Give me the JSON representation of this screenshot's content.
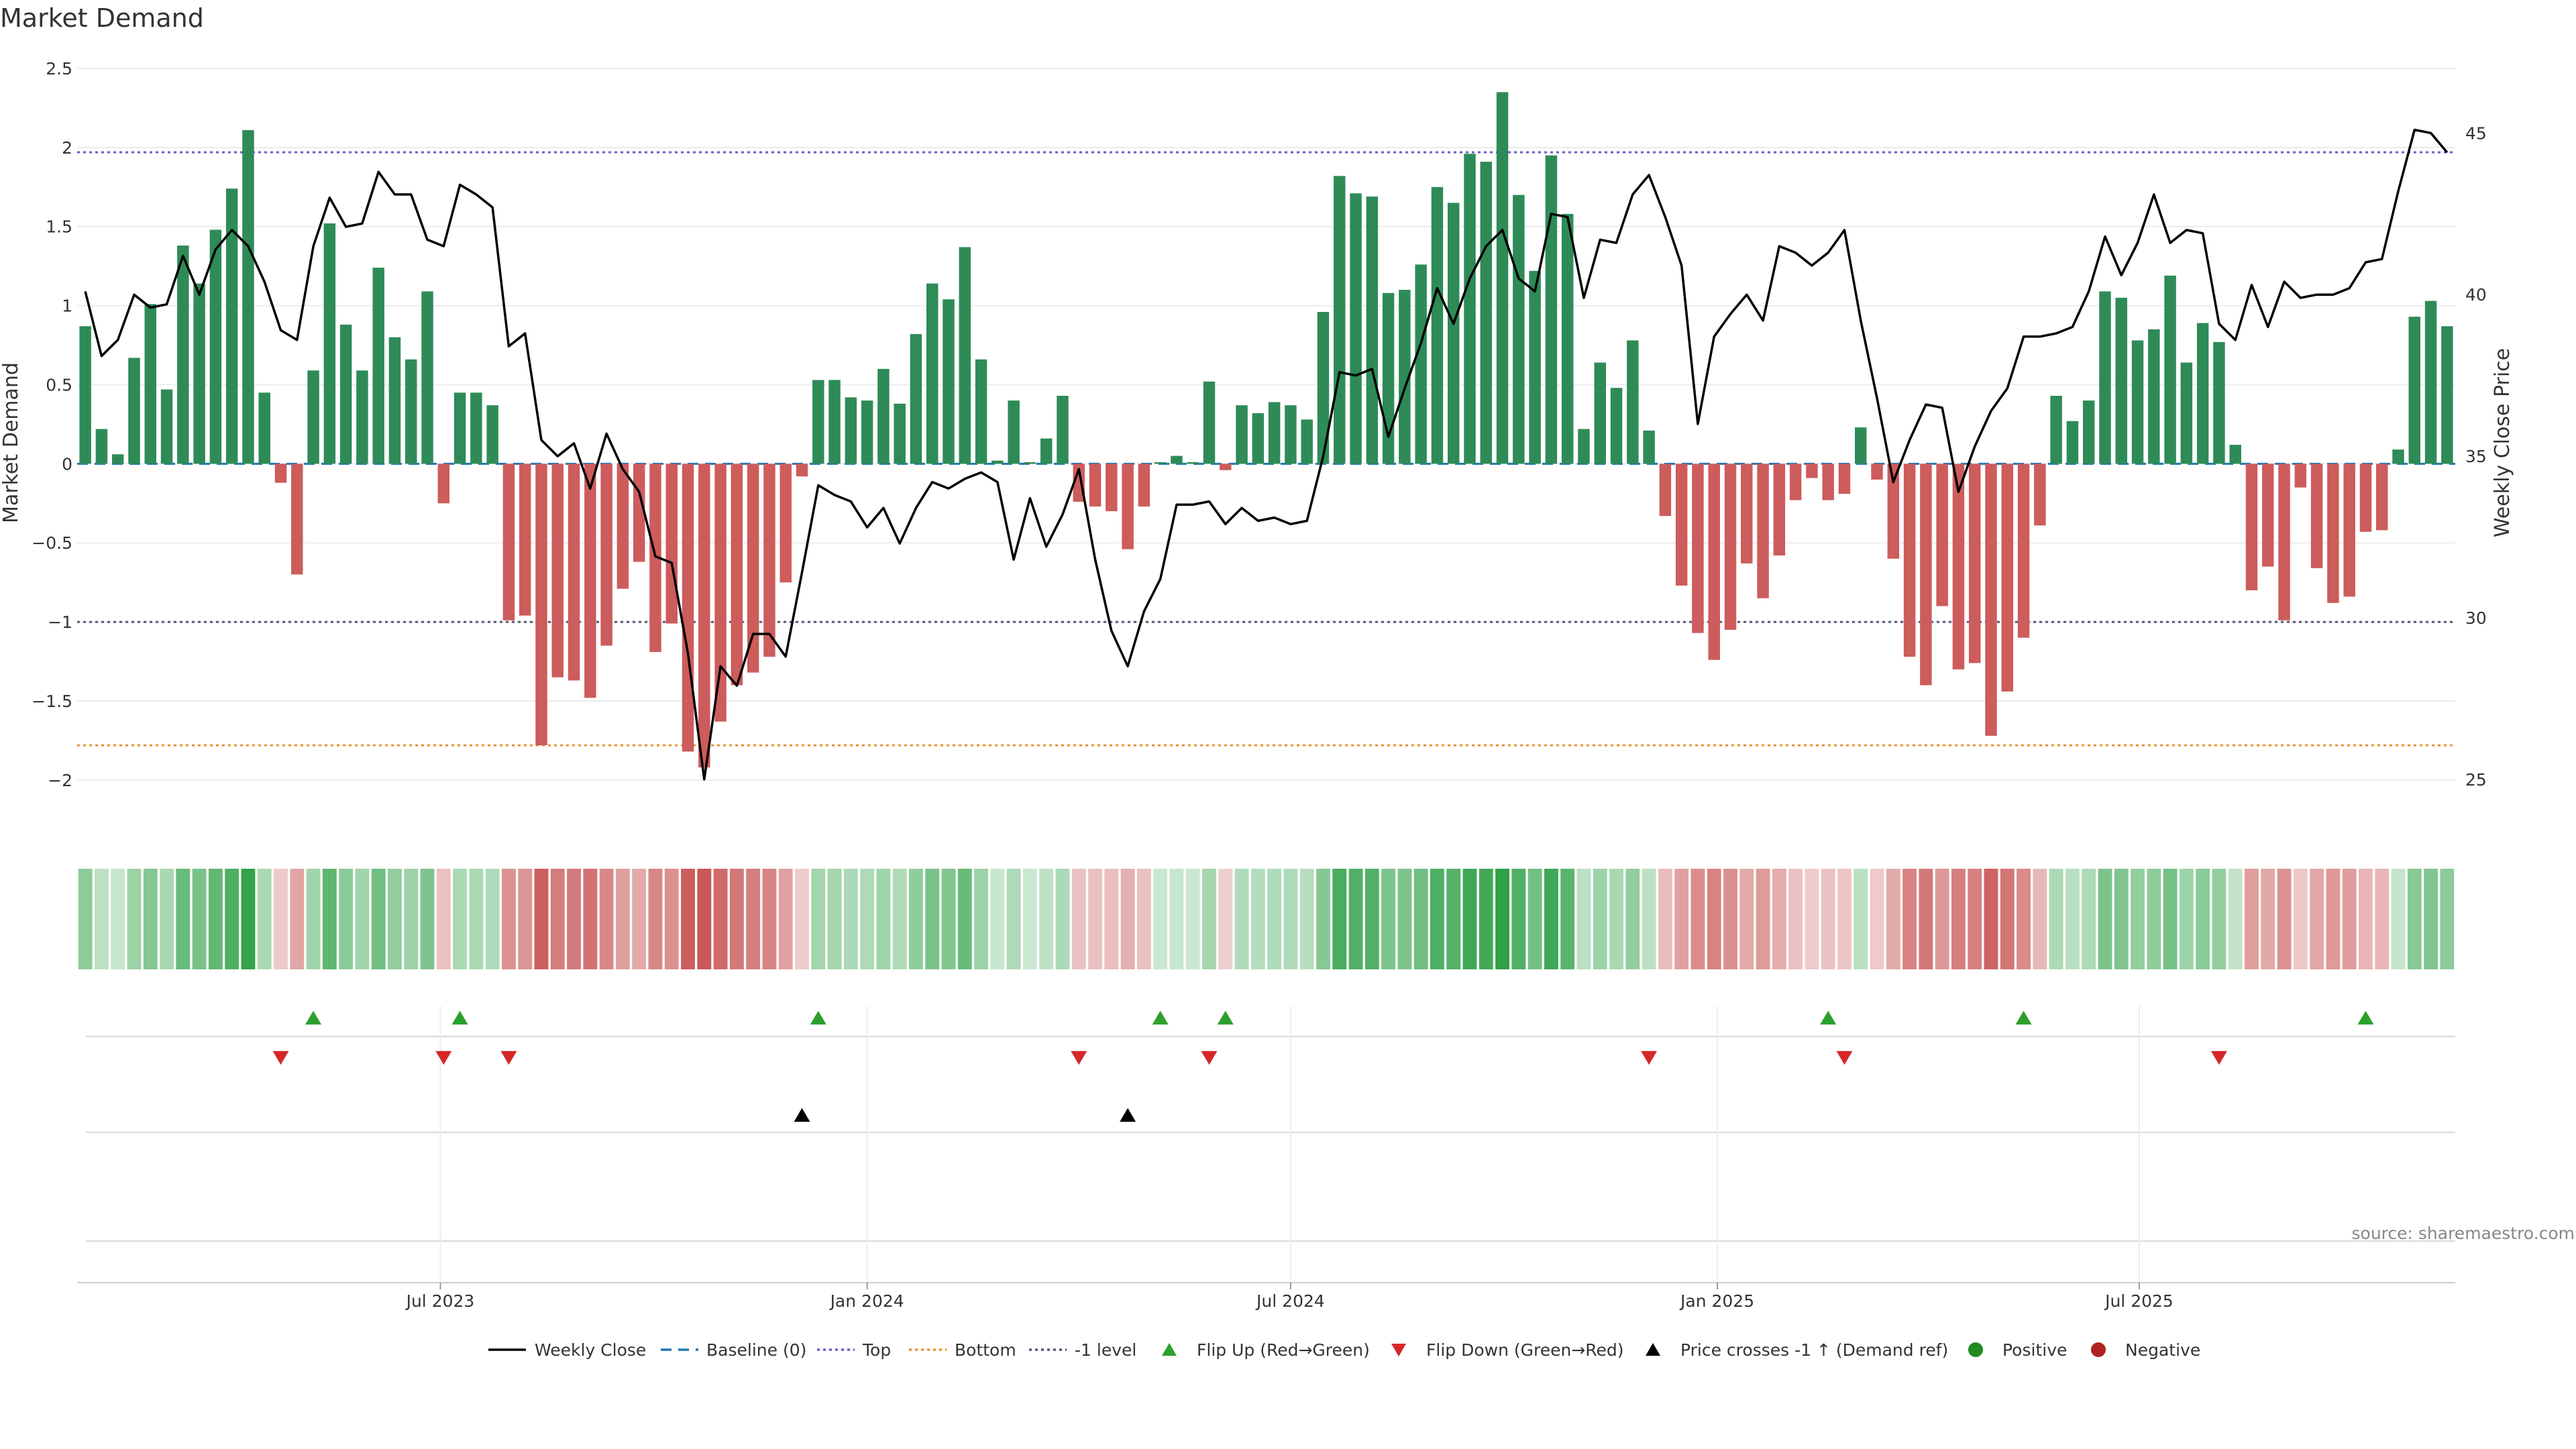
{
  "chart_data": {
    "type": "bar",
    "title": "Market Demand",
    "ylabel": "Market Demand",
    "y2label": "Weekly Close Price",
    "ylim": [
      -2.2,
      2.5
    ],
    "y2lim": [
      24,
      47
    ],
    "yticks": [
      2.5,
      2,
      1.5,
      1,
      0.5,
      0,
      -0.5,
      -1,
      -1.5,
      -2
    ],
    "ytick_labels": [
      "2.5",
      "2",
      "1.5",
      "1",
      "0.5",
      "0",
      "−0.5",
      "−1",
      "−1.5",
      "−2"
    ],
    "y2ticks": [
      45,
      40,
      35,
      30,
      25
    ],
    "y2tick_labels": [
      "45",
      "40",
      "35",
      "30",
      "25"
    ],
    "x_tick_labels": [
      "Jul 2023",
      "Jan 2024",
      "Jul 2024",
      "Jan 2025",
      "Jul 2025"
    ],
    "x_tick_index": [
      22.3,
      48.5,
      74.5,
      100.7,
      126.6
    ],
    "reference_lines": {
      "top": 1.97,
      "bottom": -1.78,
      "minus_one": -1.0
    },
    "demand": [
      0.87,
      0.22,
      0.06,
      0.67,
      1.01,
      0.47,
      1.38,
      1.14,
      1.48,
      1.74,
      2.11,
      0.45,
      -0.12,
      -0.7,
      0.59,
      1.52,
      0.88,
      0.59,
      1.24,
      0.8,
      0.66,
      1.09,
      -0.25,
      0.45,
      0.45,
      0.37,
      -0.99,
      -0.96,
      -1.78,
      -1.35,
      -1.37,
      -1.48,
      -1.15,
      -0.79,
      -0.62,
      -1.19,
      -1.01,
      -1.82,
      -1.92,
      -1.63,
      -1.4,
      -1.32,
      -1.22,
      -0.75,
      -0.08,
      0.53,
      0.53,
      0.42,
      0.4,
      0.6,
      0.38,
      0.82,
      1.14,
      1.04,
      1.37,
      0.66,
      0.02,
      0.4,
      0.01,
      0.16,
      0.43,
      -0.24,
      -0.27,
      -0.3,
      -0.54,
      -0.27,
      0.01,
      0.05,
      0.01,
      0.52,
      -0.04,
      0.37,
      0.32,
      0.39,
      0.37,
      0.28,
      0.96,
      1.82,
      1.71,
      1.69,
      1.08,
      1.1,
      1.26,
      1.75,
      1.65,
      1.96,
      1.91,
      2.35,
      1.7,
      1.22,
      1.95,
      1.58,
      0.22,
      0.64,
      0.48,
      0.78,
      0.21,
      -0.33,
      -0.77,
      -1.07,
      -1.24,
      -1.05,
      -0.63,
      -0.85,
      -0.58,
      -0.23,
      -0.09,
      -0.23,
      -0.19,
      0.23,
      -0.1,
      -0.6,
      -1.22,
      -1.4,
      -0.9,
      -1.3,
      -1.26,
      -1.72,
      -1.44,
      -1.1,
      -0.39,
      0.43,
      0.27,
      0.4,
      1.09,
      1.05,
      0.78,
      0.85,
      1.19,
      0.64,
      0.89,
      0.77,
      0.12,
      -0.8,
      -0.65,
      -0.99,
      -0.15,
      -0.66,
      -0.88,
      -0.84,
      -0.43,
      -0.42,
      0.09,
      0.93,
      1.03,
      0.87
    ],
    "weekly_close": [
      40.1,
      38.1,
      38.6,
      40,
      39.6,
      39.7,
      41.2,
      40,
      41.4,
      42,
      41.5,
      40.4,
      38.9,
      38.6,
      41.5,
      43,
      42.1,
      42.2,
      43.8,
      43.1,
      43.1,
      41.7,
      41.5,
      43.4,
      43.1,
      42.7,
      38.4,
      38.8,
      35.5,
      35,
      35.4,
      34,
      35.7,
      34.6,
      33.9,
      31.9,
      31.7,
      28.9,
      25,
      28.5,
      27.9,
      29.5,
      29.5,
      28.8,
      31.4,
      34.1,
      33.8,
      33.6,
      32.8,
      33.4,
      32.3,
      33.4,
      34.2,
      34,
      34.3,
      34.5,
      34.2,
      31.8,
      33.7,
      32.2,
      33.2,
      34.6,
      31.8,
      29.6,
      28.5,
      30.2,
      31.2,
      33.5,
      33.5,
      33.6,
      32.9,
      33.4,
      33,
      33.1,
      32.9,
      33,
      35,
      37.6,
      37.5,
      37.7,
      35.6,
      37.1,
      38.5,
      40.2,
      39.1,
      40.5,
      41.5,
      42,
      40.5,
      40.1,
      42.5,
      42.4,
      39.9,
      41.7,
      41.6,
      43.1,
      43.7,
      42.4,
      40.9,
      36,
      38.7,
      39.4,
      40,
      39.2,
      41.5,
      41.3,
      40.9,
      41.3,
      42,
      39.2,
      36.8,
      34.2,
      35.5,
      36.6,
      36.5,
      33.9,
      35.3,
      36.4,
      37.1,
      38.7,
      38.7,
      38.8,
      39,
      40.1,
      41.8,
      40.6,
      41.6,
      43.1,
      41.6,
      42,
      41.9,
      39.1,
      38.6,
      40.3,
      39,
      40.4,
      39.9,
      40,
      40,
      40.2,
      41,
      41.1,
      43.2,
      45.1,
      45,
      44.4
    ],
    "flip_up_index": [
      14,
      23,
      45,
      66,
      70,
      107,
      119,
      140
    ],
    "flip_down_index": [
      12,
      22,
      26,
      61,
      69,
      96,
      108,
      131
    ],
    "price_cross_index": [
      44,
      64
    ],
    "legend": [
      "Weekly Close",
      "Baseline (0)",
      "Top",
      "Bottom",
      "-1 level",
      "Flip Up (Red→Green)",
      "Flip Down (Green→Red)",
      "Price crosses -1 ↑ (Demand ref)",
      "Positive",
      "Negative"
    ],
    "colors": {
      "positive_bar": "#2e8b57",
      "negative_bar": "#cd5c5c",
      "price_line": "#000000",
      "baseline": "#1f77b4",
      "top_line": "#6a5acd",
      "bottom_line": "#e8912d",
      "minus_one_line": "#555577",
      "flip_up": "#2ca02c",
      "flip_down": "#d62728",
      "price_cross": "#000000",
      "positive_marker": "#228b22",
      "negative_marker": "#b22222",
      "grid": "#ececec"
    },
    "source": "source: sharemaestro.com"
  }
}
